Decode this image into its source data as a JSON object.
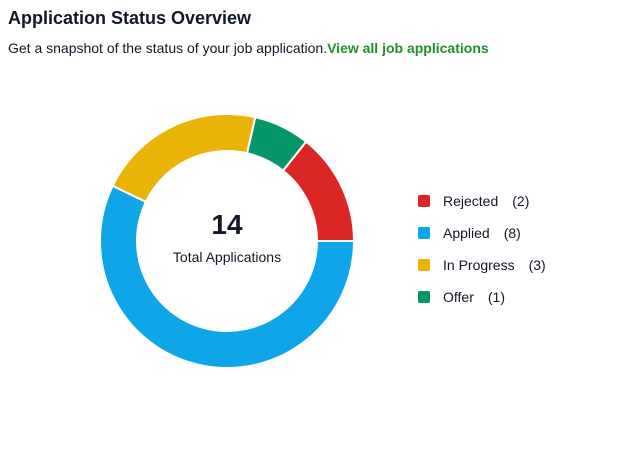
{
  "header": {
    "title": "Application Status Overview",
    "subtitle": "Get a snapshot of the status of your job application.",
    "link": "View all job applications"
  },
  "chart_data": {
    "type": "pie",
    "variant": "donut",
    "center_value": "14",
    "center_label": "Total Applications",
    "categories": [
      "Rejected",
      "Applied",
      "In Progress",
      "Offer"
    ],
    "values": [
      2,
      8,
      3,
      1
    ],
    "colors": [
      "#dc2626",
      "#0ea5e9",
      "#eab308",
      "#059669"
    ],
    "count_labels": [
      "(2)",
      "(8)",
      "(3)",
      "(1)"
    ],
    "legend_position": "right"
  }
}
